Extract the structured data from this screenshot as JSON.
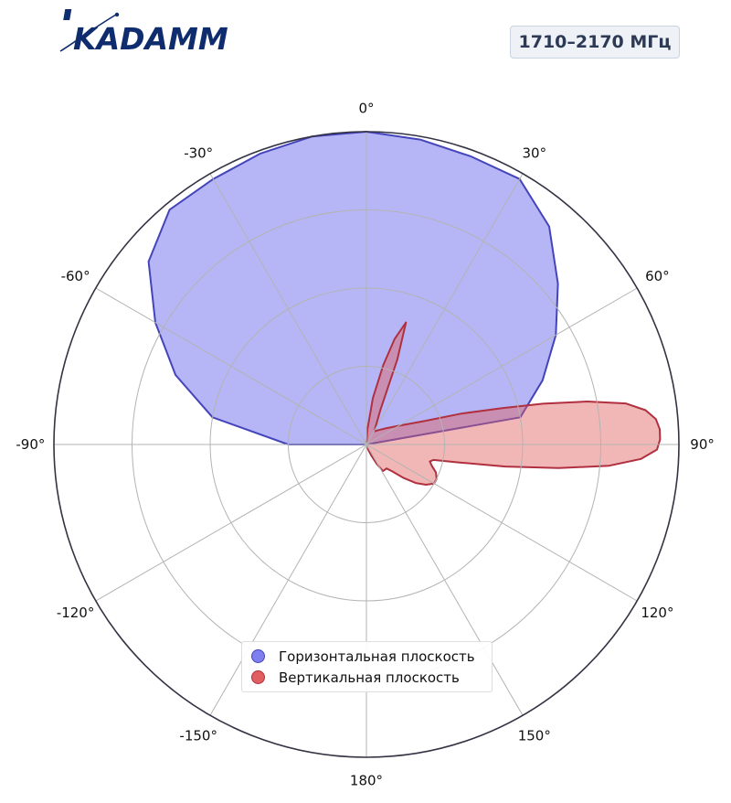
{
  "logo": {
    "text": "KADAMM"
  },
  "badge": {
    "label": "1710–2170 МГц"
  },
  "chart_data": {
    "type": "polar-area",
    "theta_zero": "top",
    "theta_direction": "clockwise",
    "theta_ticks": [
      "0°",
      "30°",
      "60°",
      "90°",
      "120°",
      "150°",
      "180°",
      "-150°",
      "-120°",
      "-90°",
      "-60°",
      "-30°"
    ],
    "r_rings": [
      0.25,
      0.5,
      0.75,
      1.0
    ],
    "r_range": [
      0,
      1
    ],
    "grid": true,
    "legend_position": "lower-center",
    "series": [
      {
        "name": "Горизонтальная плоскость",
        "fill": "#7f7fef",
        "fill_opacity": 0.57,
        "stroke": "#4444bb",
        "theta": [
          0,
          10,
          20,
          30,
          40,
          50,
          60,
          70,
          80,
          90,
          100,
          110,
          120,
          130,
          140,
          150,
          160,
          170,
          180,
          190,
          200,
          210,
          220,
          230,
          240,
          250,
          260,
          270,
          280,
          290,
          300,
          310,
          320,
          330,
          340,
          350,
          360
        ],
        "r": [
          1.0,
          0.99,
          0.98,
          0.98,
          0.91,
          0.8,
          0.7,
          0.6,
          0.5,
          0.0,
          0.0,
          0.0,
          0.0,
          0.0,
          0.0,
          0.0,
          0.0,
          0.0,
          0.0,
          0.0,
          0.0,
          0.0,
          0.0,
          0.0,
          0.0,
          0.0,
          0.0,
          0.25,
          0.5,
          0.65,
          0.78,
          0.91,
          0.98,
          0.98,
          0.99,
          1.0,
          1.0
        ]
      },
      {
        "name": "Вертикальная плоскость",
        "fill": "#e06060",
        "fill_opacity": 0.45,
        "stroke": "#b03040",
        "theta": [
          0,
          4,
          8,
          12,
          15,
          18,
          20,
          22,
          25,
          28,
          32,
          40,
          50,
          60,
          68,
          72,
          75,
          77,
          79,
          81,
          83,
          85,
          87,
          89,
          91,
          93,
          95,
          97,
          99,
          101,
          103,
          105,
          108,
          112,
          116,
          120,
          124,
          128,
          132,
          136,
          140,
          144,
          148,
          152,
          156,
          160,
          170,
          180,
          270,
          360
        ],
        "r": [
          0.0,
          0.05,
          0.15,
          0.26,
          0.35,
          0.41,
          0.29,
          0.12,
          0.08,
          0.06,
          0.05,
          0.06,
          0.08,
          0.12,
          0.2,
          0.32,
          0.45,
          0.58,
          0.72,
          0.84,
          0.9,
          0.93,
          0.94,
          0.94,
          0.93,
          0.88,
          0.78,
          0.62,
          0.45,
          0.3,
          0.22,
          0.21,
          0.22,
          0.24,
          0.25,
          0.25,
          0.23,
          0.2,
          0.16,
          0.12,
          0.1,
          0.1,
          0.1,
          0.07,
          0.04,
          0.02,
          0.0,
          0.0,
          0.0,
          0.0
        ]
      }
    ]
  }
}
